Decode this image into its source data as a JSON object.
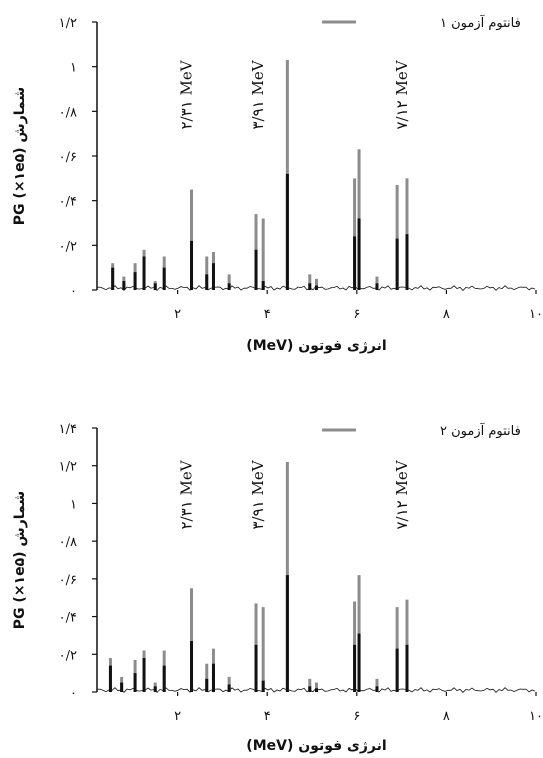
{
  "charts": [
    {
      "legend": "فانتوم آزمون ۱",
      "xlabel": "انرژی فوتون (MeV)",
      "ylabel": "شمارش PG (×۱e۵)",
      "yticks": [
        "۰",
        "۰/۲",
        "۰/۴",
        "۰/۶",
        "۰/۸",
        "۱",
        "۱/۲"
      ],
      "xticks": [
        "۲",
        "۴",
        "۶",
        "۸",
        "۱۰"
      ],
      "annotations": [
        "۲/۳۱ MeV",
        "۳/۹۱ MeV",
        "۷/۱۲ MeV"
      ]
    },
    {
      "legend": "فانتوم آزمون ۲",
      "xlabel": "انرژی فوتون (MeV)",
      "ylabel": "شمارش PG (×۱e۵)",
      "yticks": [
        "۰",
        "۰/۲",
        "۰/۴",
        "۰/۶",
        "۰/۸",
        "۱",
        "۱/۲",
        "۱/۴"
      ],
      "xticks": [
        "۲",
        "۴",
        "۶",
        "۸",
        "۱۰"
      ],
      "annotations": [
        "۲/۳۱ MeV",
        "۳/۹۱ MeV",
        "۷/۱۲ MeV"
      ]
    }
  ],
  "colors": {
    "grey": "#8c8c8c",
    "black": "#111111"
  },
  "chart_data": [
    {
      "type": "bar",
      "xlim": [
        0.2,
        10
      ],
      "ylim": [
        0,
        1.2
      ],
      "grid": false,
      "legend_position": "top-right",
      "series": [
        {
          "name": "فانتوم آزمون ۱",
          "x": [
            0.55,
            0.8,
            1.05,
            1.25,
            1.5,
            1.7,
            2.31,
            2.65,
            2.8,
            3.15,
            3.75,
            3.91,
            4.45,
            4.95,
            5.1,
            5.95,
            6.05,
            6.45,
            6.9,
            7.12
          ],
          "grey": [
            0.12,
            0.06,
            0.12,
            0.18,
            0.04,
            0.15,
            0.45,
            0.15,
            0.17,
            0.07,
            0.34,
            0.32,
            1.03,
            0.07,
            0.05,
            0.5,
            0.63,
            0.06,
            0.47,
            0.5
          ],
          "black": [
            0.1,
            0.04,
            0.08,
            0.15,
            0.03,
            0.1,
            0.22,
            0.07,
            0.12,
            0.03,
            0.18,
            0.04,
            0.52,
            0.03,
            0.02,
            0.24,
            0.32,
            0.03,
            0.23,
            0.25
          ]
        }
      ]
    },
    {
      "type": "bar",
      "xlim": [
        0.2,
        10
      ],
      "ylim": [
        0,
        1.4
      ],
      "grid": false,
      "legend_position": "top-right",
      "series": [
        {
          "name": "فانتوم آزمون ۲",
          "x": [
            0.5,
            0.75,
            1.05,
            1.25,
            1.5,
            1.7,
            2.31,
            2.65,
            2.8,
            3.15,
            3.75,
            3.91,
            4.45,
            4.95,
            5.1,
            5.95,
            6.05,
            6.45,
            6.9,
            7.12
          ],
          "grey": [
            0.18,
            0.08,
            0.17,
            0.22,
            0.05,
            0.22,
            0.55,
            0.15,
            0.23,
            0.08,
            0.47,
            0.45,
            1.22,
            0.07,
            0.05,
            0.48,
            0.62,
            0.07,
            0.45,
            0.49
          ],
          "black": [
            0.14,
            0.05,
            0.1,
            0.18,
            0.03,
            0.14,
            0.27,
            0.07,
            0.15,
            0.04,
            0.25,
            0.06,
            0.62,
            0.03,
            0.02,
            0.25,
            0.31,
            0.03,
            0.23,
            0.25
          ]
        }
      ]
    }
  ]
}
